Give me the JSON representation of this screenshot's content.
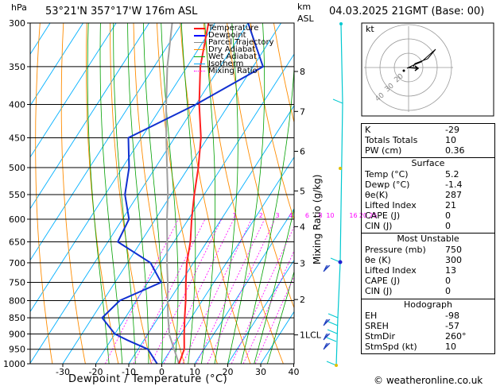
{
  "header": {
    "hpa_unit": "hPa",
    "location": "53°21'N  357°17'W  176m  ASL",
    "km_unit": "km",
    "asl": "ASL",
    "date": "04.03.2025  21GMT  (Base: 00)"
  },
  "legend": [
    {
      "label": "Temperature",
      "color": "#ff0000"
    },
    {
      "label": "Dewpoint",
      "color": "#0000ff"
    },
    {
      "label": "Parcel Trajectory",
      "color": "#888888"
    },
    {
      "label": "Dry Adiabat",
      "color": "#ff8c00"
    },
    {
      "label": "Wet Adiabat",
      "color": "#00aa00"
    },
    {
      "label": "Isotherm",
      "color": "#00aaff"
    },
    {
      "label": "Mixing Ratio",
      "color": "#ff00ff"
    }
  ],
  "chart_data": {
    "type": "line",
    "title": "",
    "xlabel": "Dewpoint / Temperature (°C)",
    "ylabel": "hPa",
    "y2label": "Mixing Ratio (g/kg)",
    "xlim": [
      -40,
      40
    ],
    "ylim": [
      1000,
      300
    ],
    "pressure_levels": [
      300,
      350,
      400,
      450,
      500,
      550,
      600,
      650,
      700,
      750,
      800,
      850,
      900,
      950,
      1000
    ],
    "x_ticks": [
      -30,
      -20,
      -10,
      0,
      10,
      20,
      30,
      40
    ],
    "km_ticks": [
      {
        "label": "8",
        "p": 356
      },
      {
        "label": "7",
        "p": 410
      },
      {
        "label": "6",
        "p": 472
      },
      {
        "label": "5",
        "p": 543
      },
      {
        "label": "4",
        "p": 616
      },
      {
        "label": "3",
        "p": 701
      },
      {
        "label": "2",
        "p": 797
      },
      {
        "label": "1LCL",
        "p": 903
      }
    ],
    "mixing_ratio_labels": [
      {
        "label": "1",
        "t": -6
      },
      {
        "label": "2",
        "t": 2
      },
      {
        "label": "3",
        "t": 7
      },
      {
        "label": "4",
        "t": 11
      },
      {
        "label": "6",
        "t": 16
      },
      {
        "label": "8",
        "t": 20
      },
      {
        "label": "10",
        "t": 23
      },
      {
        "label": "16",
        "t": 30
      },
      {
        "label": "20",
        "t": 33
      },
      {
        "label": "25",
        "t": 36
      }
    ],
    "temperature": {
      "name": "Temperature",
      "points": [
        [
          1000,
          5.2
        ],
        [
          950,
          4
        ],
        [
          900,
          1
        ],
        [
          850,
          -2
        ],
        [
          800,
          -5
        ],
        [
          750,
          -8.5
        ],
        [
          700,
          -12
        ],
        [
          650,
          -15
        ],
        [
          600,
          -19
        ],
        [
          550,
          -23
        ],
        [
          500,
          -27
        ],
        [
          450,
          -32
        ],
        [
          400,
          -39
        ],
        [
          350,
          -46
        ],
        [
          300,
          -52
        ]
      ]
    },
    "dewpoint": {
      "name": "Dewpoint",
      "points": [
        [
          1000,
          -1.4
        ],
        [
          950,
          -7
        ],
        [
          920,
          -15
        ],
        [
          900,
          -20
        ],
        [
          850,
          -27
        ],
        [
          800,
          -25
        ],
        [
          750,
          -16
        ],
        [
          700,
          -23
        ],
        [
          650,
          -37
        ],
        [
          600,
          -38
        ],
        [
          550,
          -44
        ],
        [
          500,
          -48
        ],
        [
          450,
          -54
        ],
        [
          400,
          -40
        ],
        [
          350,
          -27
        ],
        [
          300,
          -40
        ]
      ]
    },
    "parcel": {
      "name": "Parcel Trajectory",
      "points": [
        [
          1000,
          5.2
        ],
        [
          903,
          -3.3
        ],
        [
          850,
          -7
        ],
        [
          800,
          -10.5
        ],
        [
          750,
          -14
        ],
        [
          700,
          -18
        ],
        [
          650,
          -22
        ],
        [
          600,
          -26.5
        ],
        [
          550,
          -31
        ],
        [
          500,
          -36.5
        ],
        [
          450,
          -42.5
        ],
        [
          400,
          -49
        ],
        [
          350,
          -56
        ],
        [
          300,
          -63
        ]
      ]
    }
  },
  "indices": {
    "top": [
      {
        "label": "K",
        "value": "-29"
      },
      {
        "label": "Totals Totals",
        "value": "10"
      },
      {
        "label": "PW (cm)",
        "value": "0.36"
      }
    ],
    "surface": {
      "title": "Surface",
      "rows": [
        {
          "label": "Temp (°C)",
          "value": "5.2"
        },
        {
          "label": "Dewp (°C)",
          "value": "-1.4"
        },
        {
          "label": "θe(K)",
          "value": "287"
        },
        {
          "label": "Lifted Index",
          "value": "21"
        },
        {
          "label": "CAPE (J)",
          "value": "0"
        },
        {
          "label": "CIN (J)",
          "value": "0"
        }
      ]
    },
    "most_unstable": {
      "title": "Most Unstable",
      "rows": [
        {
          "label": "Pressure (mb)",
          "value": "750"
        },
        {
          "label": "θe (K)",
          "value": "300"
        },
        {
          "label": "Lifted Index",
          "value": "13"
        },
        {
          "label": "CAPE (J)",
          "value": "0"
        },
        {
          "label": "CIN (J)",
          "value": "0"
        }
      ]
    },
    "hodograph": {
      "title": "Hodograph",
      "rows": [
        {
          "label": "EH",
          "value": "-98"
        },
        {
          "label": "SREH",
          "value": "-57"
        },
        {
          "label": "StmDir",
          "value": "260°"
        },
        {
          "label": "StmSpd (kt)",
          "value": "10"
        }
      ]
    }
  },
  "hodo": {
    "unit_label": "kt",
    "ring_labels": [
      "40",
      "30",
      "20"
    ]
  },
  "footer": {
    "copyright": "© weatheronline.co.uk"
  },
  "colors": {
    "temperature": "#ff2020",
    "dewpoint": "#1030d0",
    "parcel": "#a0a0a0",
    "dry_adiabat": "#ff8c00",
    "wet_adiabat": "#00a000",
    "isotherm": "#00b0ff",
    "mixing_ratio": "#ff00ff",
    "wind": "#00c8d0"
  }
}
